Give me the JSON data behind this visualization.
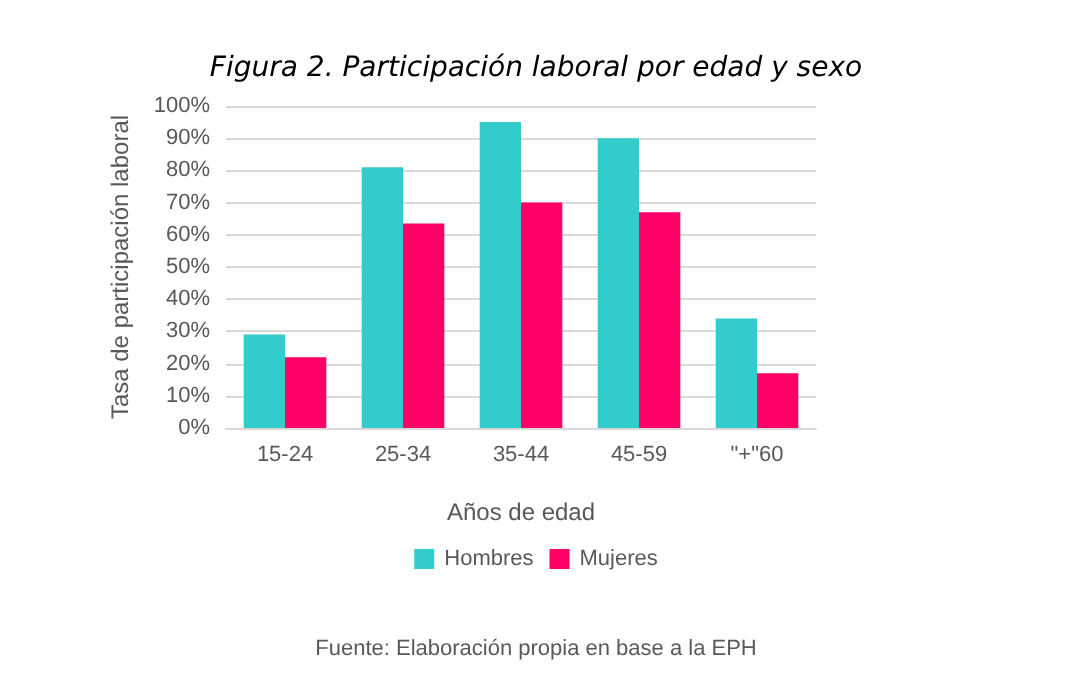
{
  "chart_data": {
    "type": "bar",
    "title": "Figura 2. Participación laboral por edad y sexo",
    "xlabel": "Años de edad",
    "ylabel": "Tasa de participación laboral",
    "categories": [
      "15-24",
      "25-34",
      "35-44",
      "45-59",
      "\"+\"60"
    ],
    "series": [
      {
        "name": "Hombres",
        "color": "#33cccc",
        "values": [
          29,
          81,
          95,
          90,
          34
        ]
      },
      {
        "name": "Mujeres",
        "color": "#ff0066",
        "values": [
          22,
          63.5,
          70,
          67,
          17
        ]
      }
    ],
    "ylim": [
      0,
      100
    ],
    "yticks": [
      {
        "value": 0,
        "label": "0%"
      },
      {
        "value": 10,
        "label": "10%"
      },
      {
        "value": 20,
        "label": "20%"
      },
      {
        "value": 30,
        "label": "30%"
      },
      {
        "value": 40,
        "label": "40%"
      },
      {
        "value": 50,
        "label": "50%"
      },
      {
        "value": 60,
        "label": "60%"
      },
      {
        "value": 70,
        "label": "70%"
      },
      {
        "value": 80,
        "label": "80%"
      },
      {
        "value": 90,
        "label": "90%"
      },
      {
        "value": 100,
        "label": "100%"
      }
    ],
    "grid": "y",
    "legend": "bottom",
    "annotations": [
      "Fuente: Elaboración propia en base a la EPH"
    ]
  }
}
